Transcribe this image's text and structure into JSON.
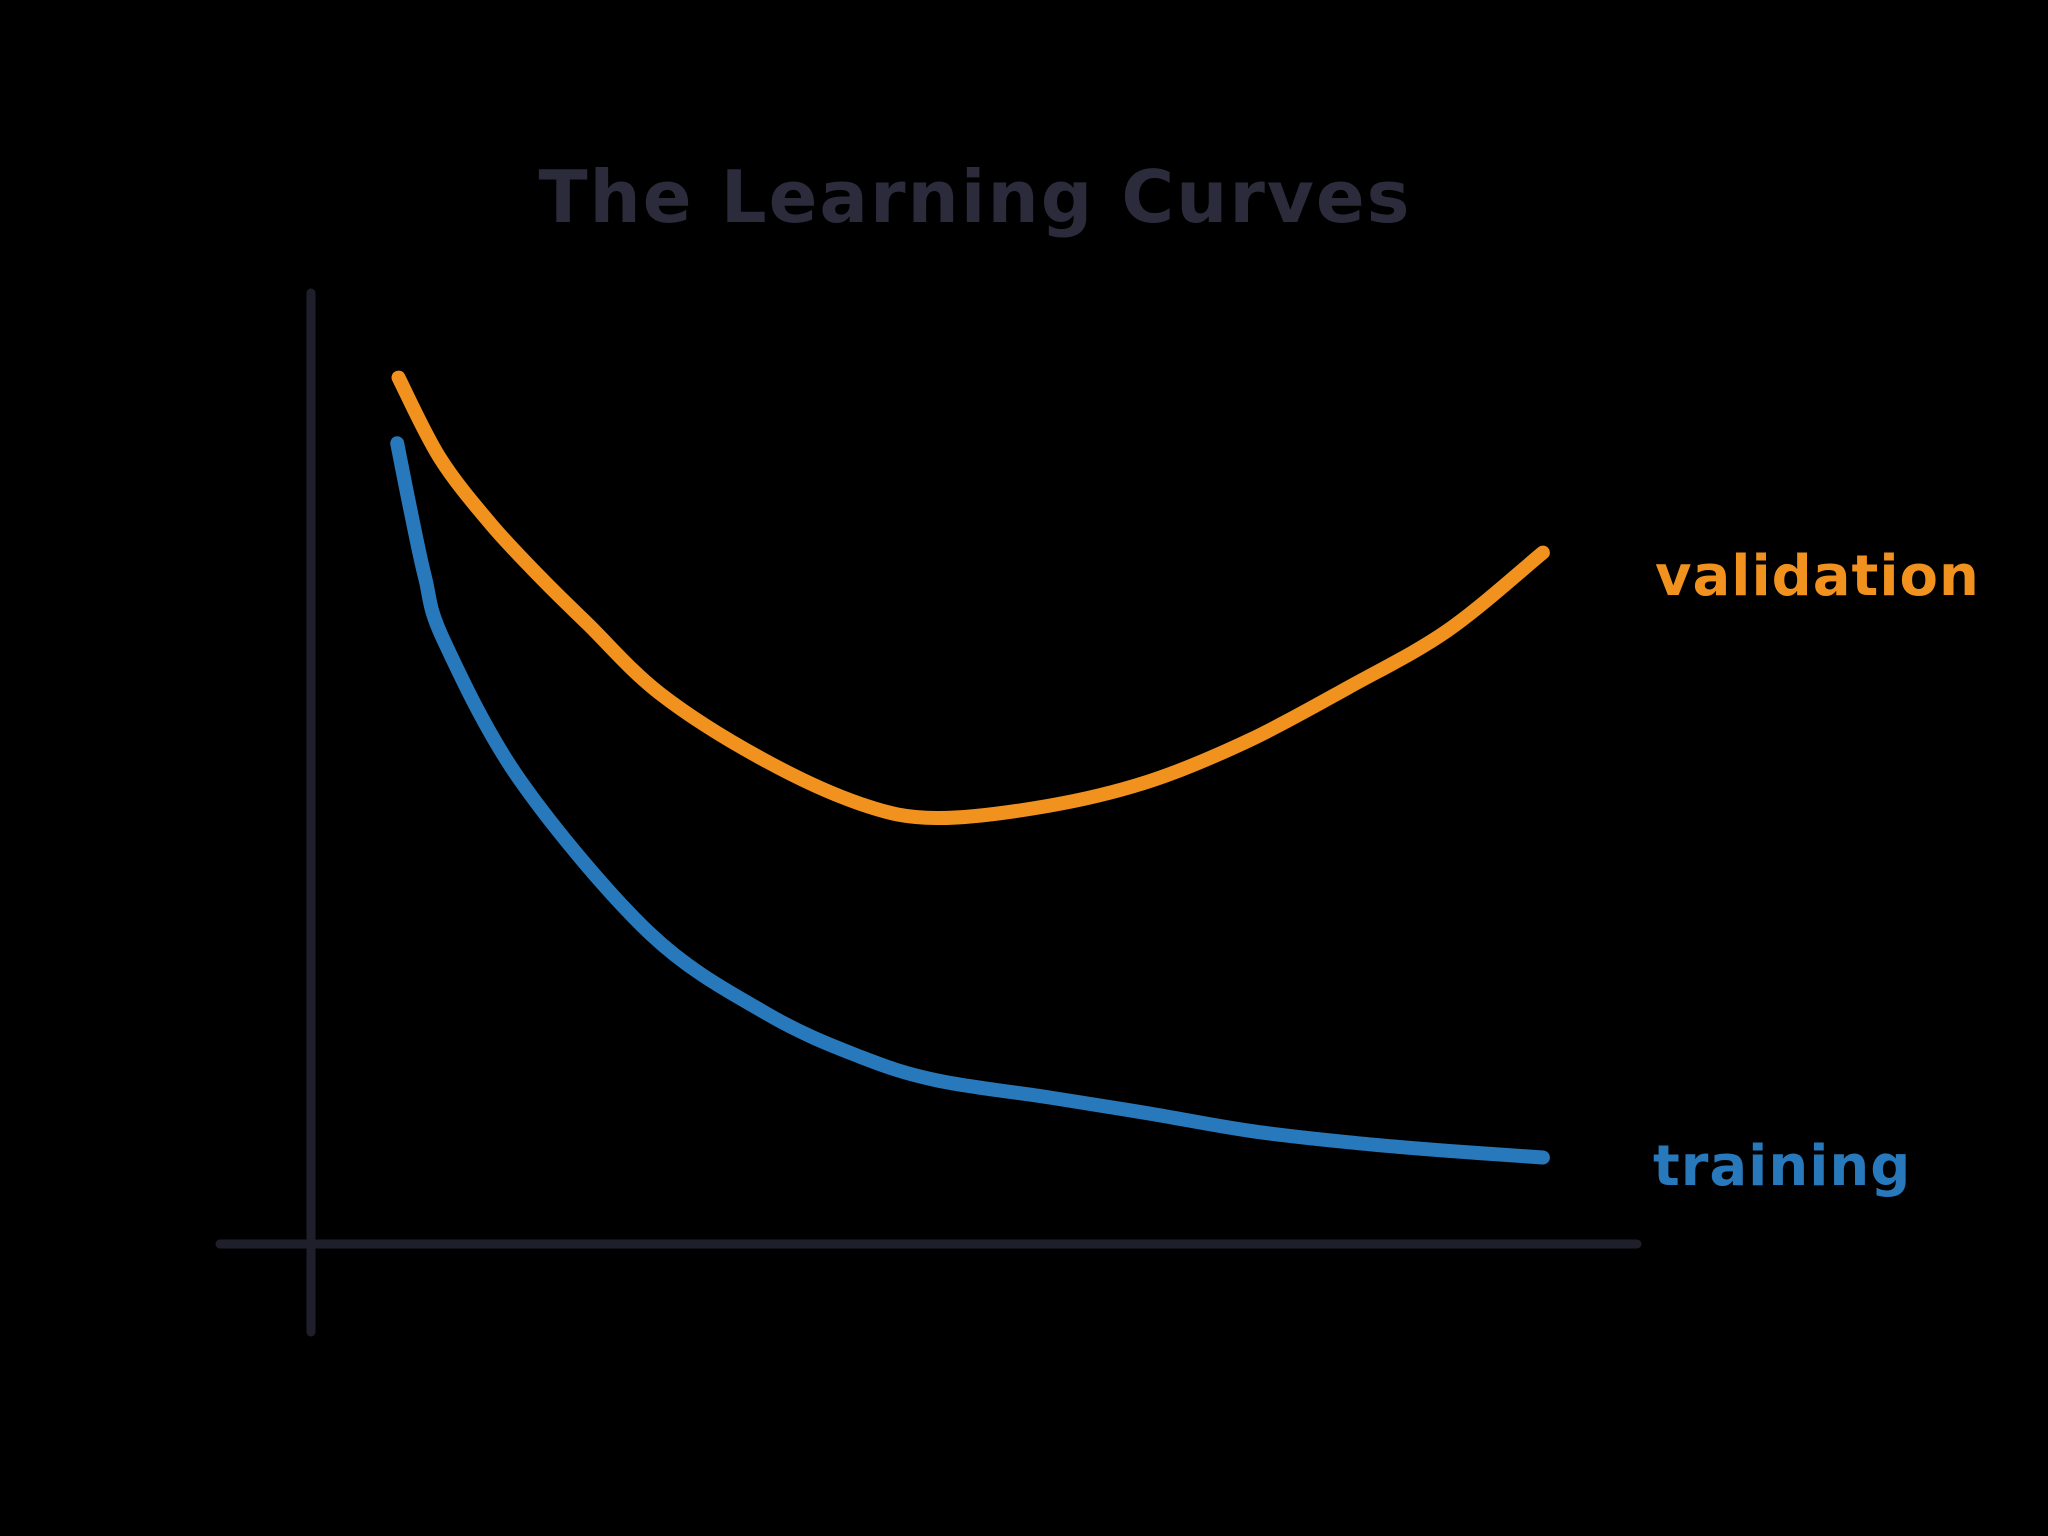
{
  "chart_data": {
    "type": "line",
    "title": "The Learning Curves",
    "xlabel": "",
    "ylabel": "",
    "x_ticks": [],
    "y_ticks": [],
    "grid": false,
    "legend_position": "inline-right-of-curves",
    "background": "#000000",
    "ink_color": "#2B2B3C",
    "axis_color": "#1F1F2B",
    "x_range_normalized": [
      0,
      1
    ],
    "y_range_normalized": [
      0,
      1
    ],
    "series": [
      {
        "name": "validation",
        "label": "validation",
        "color": "#F1921E",
        "shape": "u-curve (overfitting: loss falls then rises)",
        "x": [
          0.066,
          0.097,
          0.135,
          0.173,
          0.208,
          0.263,
          0.339,
          0.414,
          0.472,
          0.557,
          0.633,
          0.708,
          0.782,
          0.857,
          0.929
        ],
        "values": [
          0.911,
          0.827,
          0.758,
          0.701,
          0.653,
          0.579,
          0.511,
          0.463,
          0.448,
          0.461,
          0.487,
          0.53,
          0.585,
          0.645,
          0.727
        ]
      },
      {
        "name": "training",
        "label": "training",
        "color": "#2878BC",
        "shape": "monotonic decay flattening to asymptote",
        "x": [
          0.065,
          0.075,
          0.086,
          0.1,
          0.158,
          0.256,
          0.344,
          0.414,
          0.472,
          0.557,
          0.633,
          0.708,
          0.782,
          0.857,
          0.929
        ],
        "values": [
          0.842,
          0.772,
          0.701,
          0.635,
          0.487,
          0.326,
          0.242,
          0.197,
          0.172,
          0.154,
          0.137,
          0.119,
          0.107,
          0.098,
          0.091
        ]
      }
    ]
  }
}
